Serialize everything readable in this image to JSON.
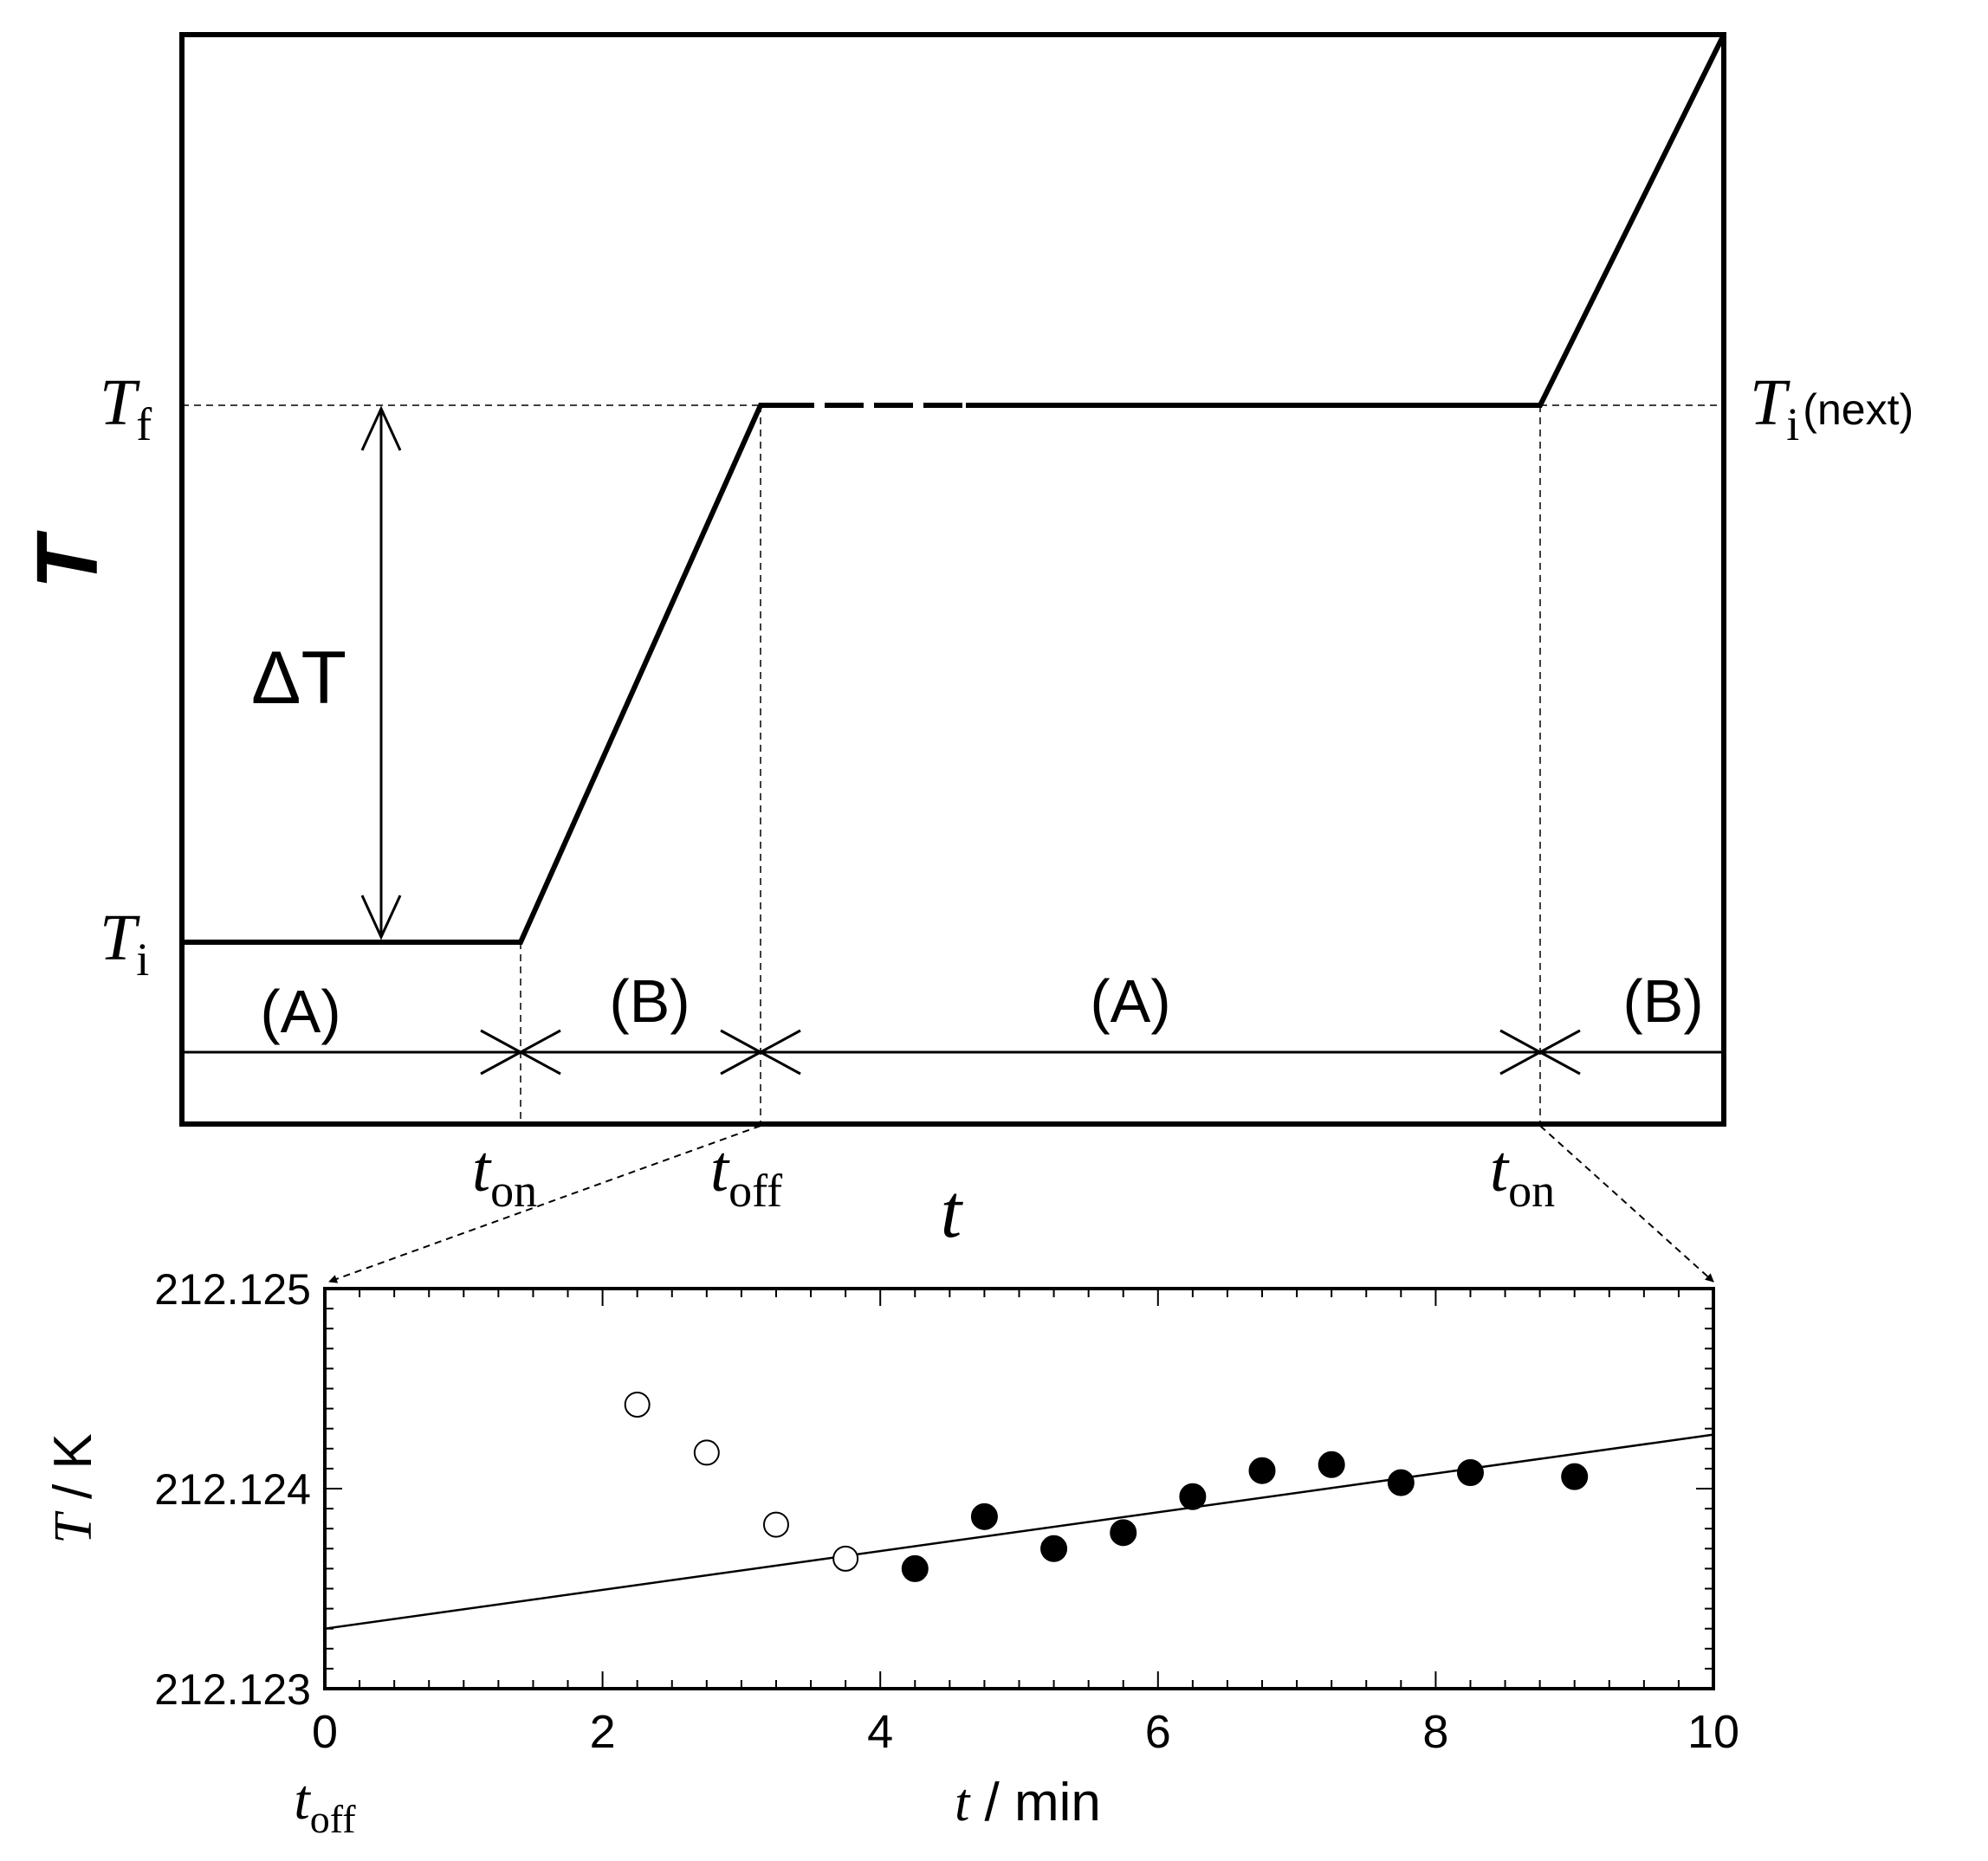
{
  "schematic": {
    "y_axis_label": "T",
    "x_axis_label": "t",
    "levels": {
      "Tf": {
        "base": "T",
        "sub": "f"
      },
      "Ti": {
        "base": "T",
        "sub": "i"
      },
      "Ti_next": {
        "base": "T",
        "sub": "i",
        "suffix": "(next)"
      }
    },
    "delta_label": "ΔT",
    "periods": [
      "(A)",
      "(B)",
      "(A)",
      "(B)"
    ],
    "time_marks": [
      {
        "base": "t",
        "sub": "on"
      },
      {
        "base": "t",
        "sub": "off"
      },
      {
        "base": "t",
        "sub": "on"
      }
    ]
  },
  "chart_data": {
    "type": "scatter",
    "xlabel": {
      "italic": "t",
      "rest": " / min"
    },
    "ylabel": {
      "italic": "T",
      "rest": " / K"
    },
    "xlim": [
      0,
      10
    ],
    "ylim": [
      212.123,
      212.125
    ],
    "x_ticks": [
      "0",
      "2",
      "4",
      "6",
      "8",
      "10"
    ],
    "y_ticks": [
      "212.123",
      "212.124",
      "212.125"
    ],
    "x_origin_label": {
      "base": "t",
      "sub": "off"
    },
    "series": [
      {
        "marker": "open-circle",
        "points": [
          [
            2.25,
            212.12442
          ],
          [
            2.75,
            212.12418
          ],
          [
            3.25,
            212.12382
          ],
          [
            3.75,
            212.12365
          ]
        ]
      },
      {
        "marker": "filled-circle",
        "points": [
          [
            4.25,
            212.1236
          ],
          [
            4.75,
            212.12386
          ],
          [
            5.25,
            212.1237
          ],
          [
            5.75,
            212.12378
          ],
          [
            6.25,
            212.12396
          ],
          [
            6.75,
            212.12409
          ],
          [
            7.25,
            212.12412
          ],
          [
            7.75,
            212.12403
          ],
          [
            8.25,
            212.12408
          ],
          [
            9.0,
            212.12406
          ]
        ]
      }
    ],
    "fit_line": {
      "x": [
        0,
        10
      ],
      "y": [
        212.1233,
        212.12427
      ]
    }
  },
  "colors": {
    "ink": "#000000",
    "background": "#ffffff"
  }
}
